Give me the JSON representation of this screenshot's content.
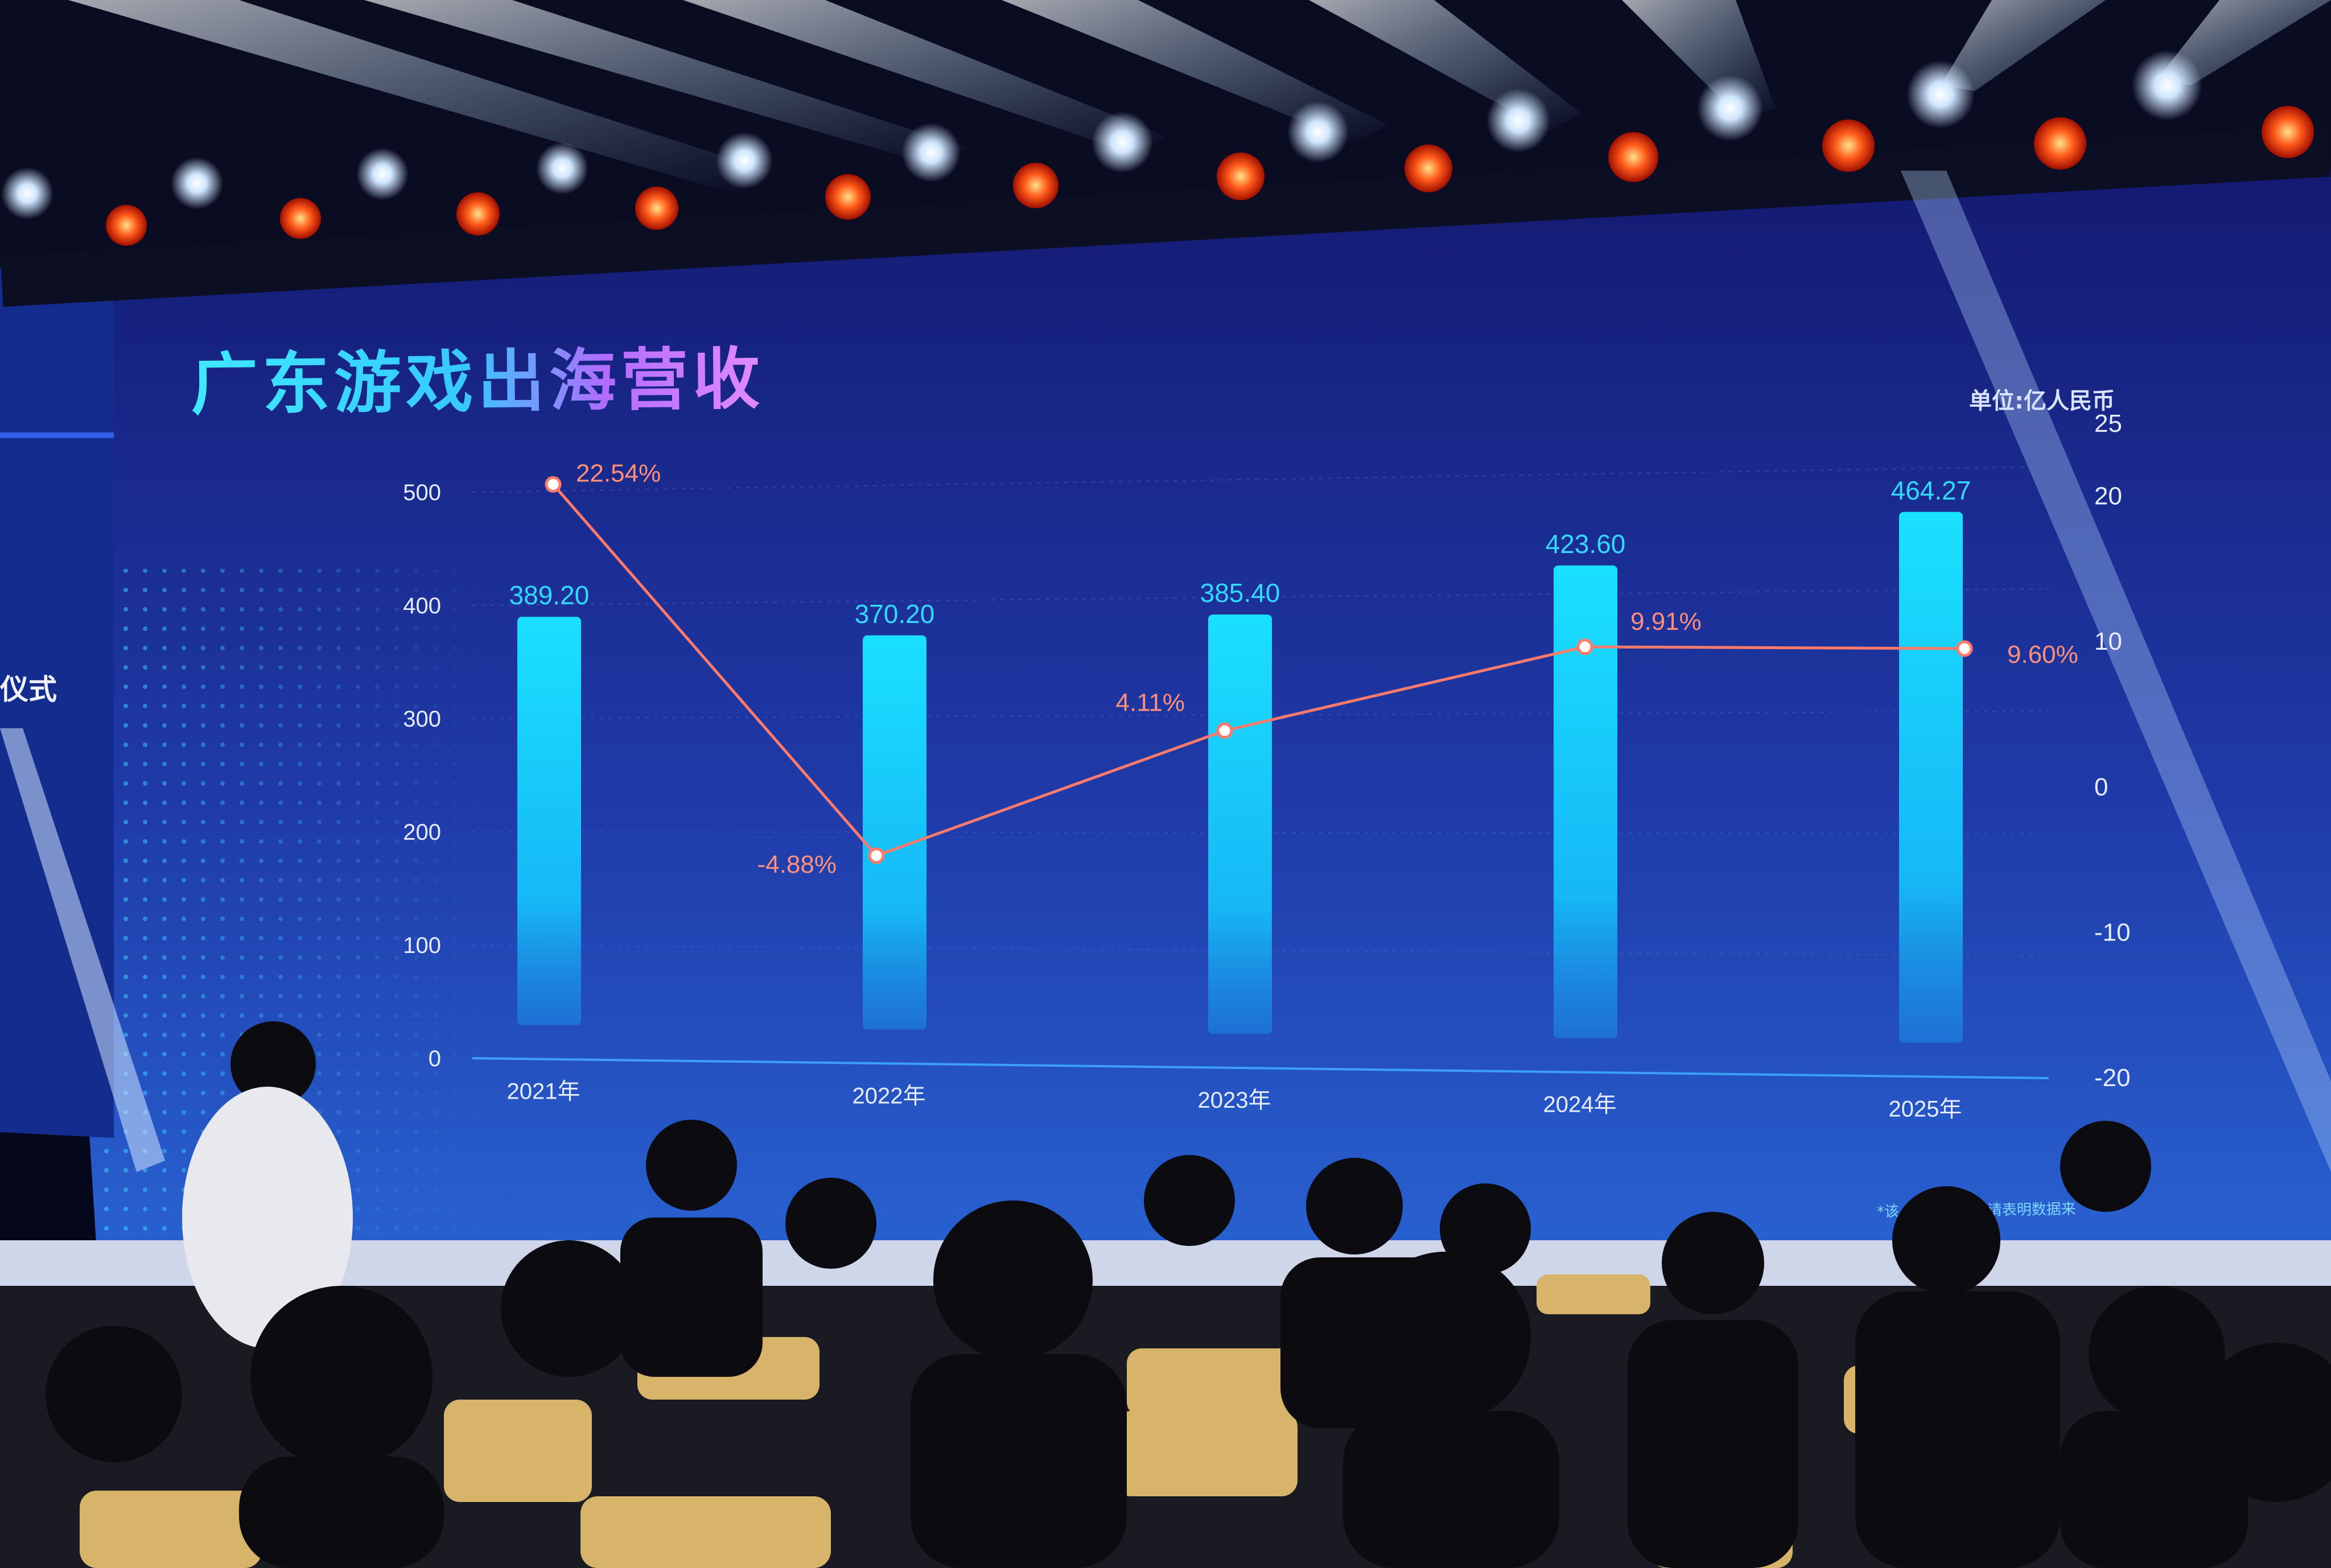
{
  "screen": {
    "title": "广东游戏出海营收",
    "unit": "单位:亿人民币",
    "side_text": "仪式",
    "footnote": "*该 … 协会,转载请表明数据来"
  },
  "colors": {
    "bar": "#18d6ff",
    "line": "#ff7a6a",
    "bar_label": "#33d9ff",
    "growth_label": "#ff8f7a",
    "axis_text": "#e6ecff"
  },
  "chart_data": {
    "type": "bar",
    "title": "广东游戏出海营收",
    "unit": "单位:亿人民币",
    "categories": [
      "2021年",
      "2022年",
      "2023年",
      "2024年",
      "2025年"
    ],
    "series": [
      {
        "type": "bar",
        "axis": "left",
        "values": [
          389.2,
          370.2,
          385.4,
          423.6,
          464.27
        ]
      },
      {
        "type": "line",
        "axis": "right",
        "values": [
          22.54,
          -4.88,
          4.11,
          9.91,
          9.6
        ]
      }
    ],
    "bar_labels": [
      "389.20",
      "370.20",
      "385.40",
      "423.60",
      "464.27"
    ],
    "line_labels": [
      "22.54%",
      "-4.88%",
      "4.11%",
      "9.91%",
      "9.60%"
    ],
    "y_left": {
      "ticks": [
        "0",
        "100",
        "200",
        "300",
        "400",
        "500"
      ],
      "range": [
        0,
        500
      ]
    },
    "y_right": {
      "ticks": [
        "-20",
        "-10",
        "0",
        "10",
        "20",
        "25"
      ],
      "range": [
        -20,
        25
      ]
    },
    "grid": true,
    "legend": "none"
  }
}
